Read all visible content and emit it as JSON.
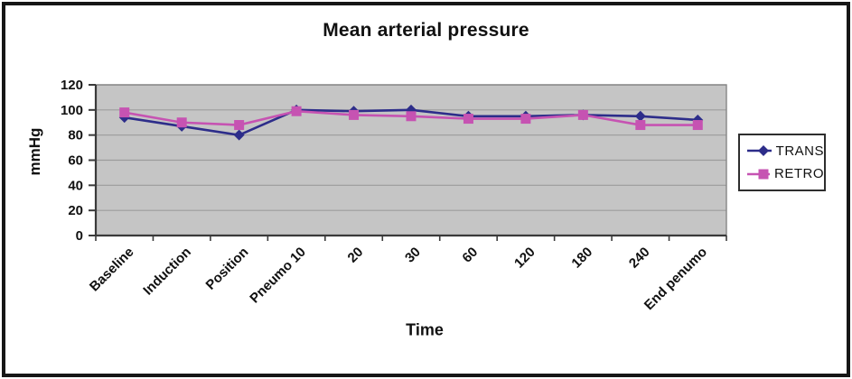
{
  "chart_data": {
    "type": "line",
    "title": "Mean arterial pressure",
    "xlabel": "Time",
    "ylabel": "mmHg",
    "categories": [
      "Baseline",
      "Induction",
      "Position",
      "Pneumo 10",
      "20",
      "30",
      "60",
      "120",
      "180",
      "240",
      "End penumo"
    ],
    "series": [
      {
        "name": "TRANS",
        "marker": "diamond",
        "color": "#2d2d8a",
        "values": [
          94,
          87,
          80,
          100,
          99,
          100,
          95,
          95,
          96,
          95,
          92
        ]
      },
      {
        "name": "RETRO",
        "marker": "square",
        "color": "#c653b2",
        "values": [
          98,
          90,
          88,
          99,
          96,
          95,
          93,
          93,
          96,
          88,
          88
        ]
      }
    ],
    "ylim": [
      0,
      120
    ],
    "yticks": [
      0,
      20,
      40,
      60,
      80,
      100,
      120
    ],
    "grid": true,
    "legend_position": "right",
    "plot_background": "#c5c5c5",
    "gridline_color": "#9b9b9b",
    "plot_border_color": "#858585",
    "axis_color": "#3a3a3a"
  }
}
